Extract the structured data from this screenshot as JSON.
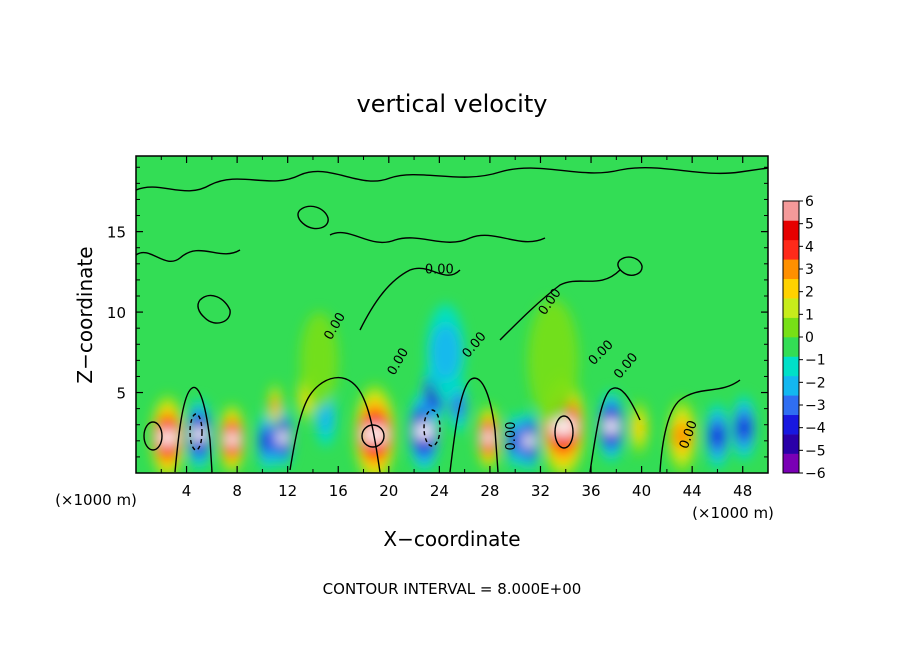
{
  "chart_data": {
    "type": "heatmap",
    "title": "vertical velocity",
    "xlabel": "X−coordinate",
    "ylabel": "Z−coordinate",
    "x_unit_left": "(×1000 m)",
    "x_unit_right": "(×1000 m)",
    "footer": "CONTOUR INTERVAL = 8.000E+00",
    "xlim": [
      0,
      50
    ],
    "ylim": [
      0,
      19.7
    ],
    "x_ticks": [
      4,
      8,
      12,
      16,
      20,
      24,
      28,
      32,
      36,
      40,
      44,
      48
    ],
    "y_ticks": [
      5,
      10,
      15
    ],
    "contour_label": "0.00",
    "colorbar": {
      "ticks": [
        "6",
        "5",
        "4",
        "3",
        "2",
        "1",
        "0",
        "−1",
        "−2",
        "−3",
        "−4",
        "−5",
        "−6"
      ],
      "min": -6,
      "max": 6,
      "colors": [
        "#7a00b5",
        "#2a00a8",
        "#1818e0",
        "#2f6ef2",
        "#13b7f0",
        "#00e0c8",
        "#33dd55",
        "#77e016",
        "#c7ec1b",
        "#ffd200",
        "#ff9000",
        "#ff2a1a",
        "#e60000",
        "#f49a9a"
      ]
    },
    "cells": [
      {
        "x": 2.5,
        "z": 2.2,
        "w": 1.3,
        "v": 8
      },
      {
        "x": 5.0,
        "z": 2.4,
        "w": 1.0,
        "v": -8
      },
      {
        "x": 7.6,
        "z": 2.1,
        "w": 1.0,
        "v": 7
      },
      {
        "x": 10.4,
        "z": 2.0,
        "w": 0.8,
        "v": -4
      },
      {
        "x": 11.6,
        "z": 2.2,
        "w": 0.8,
        "v": -6
      },
      {
        "x": 11.0,
        "z": 4.2,
        "w": 0.5,
        "v": 4
      },
      {
        "x": 13.5,
        "z": 4.8,
        "w": 0.7,
        "v": 3
      },
      {
        "x": 15.0,
        "z": 3.5,
        "w": 0.8,
        "v": -2
      },
      {
        "x": 18.9,
        "z": 2.4,
        "w": 1.6,
        "v": 8
      },
      {
        "x": 22.8,
        "z": 2.6,
        "w": 1.2,
        "v": -8
      },
      {
        "x": 23.6,
        "z": 5.0,
        "w": 0.9,
        "v": -5
      },
      {
        "x": 25.5,
        "z": 4.2,
        "w": 0.7,
        "v": -3
      },
      {
        "x": 27.9,
        "z": 2.2,
        "w": 0.9,
        "v": 7
      },
      {
        "x": 30.0,
        "z": 2.0,
        "w": 0.7,
        "v": -4
      },
      {
        "x": 31.1,
        "z": 2.0,
        "w": 0.8,
        "v": -6
      },
      {
        "x": 33.8,
        "z": 2.9,
        "w": 1.7,
        "v": 9
      },
      {
        "x": 37.6,
        "z": 2.9,
        "w": 1.0,
        "v": -6
      },
      {
        "x": 39.8,
        "z": 2.8,
        "w": 0.7,
        "v": 3
      },
      {
        "x": 43.2,
        "z": 2.3,
        "w": 1.1,
        "v": 4
      },
      {
        "x": 46.0,
        "z": 2.3,
        "w": 0.9,
        "v": -4
      },
      {
        "x": 48.1,
        "z": 2.8,
        "w": 0.9,
        "v": -4
      },
      {
        "x": 24.5,
        "z": 7.5,
        "w": 1.5,
        "v": -2
      },
      {
        "x": 33.0,
        "z": 7.0,
        "w": 2.0,
        "v": 1
      },
      {
        "x": 14.5,
        "z": 7.0,
        "w": 1.5,
        "v": 1
      }
    ]
  }
}
